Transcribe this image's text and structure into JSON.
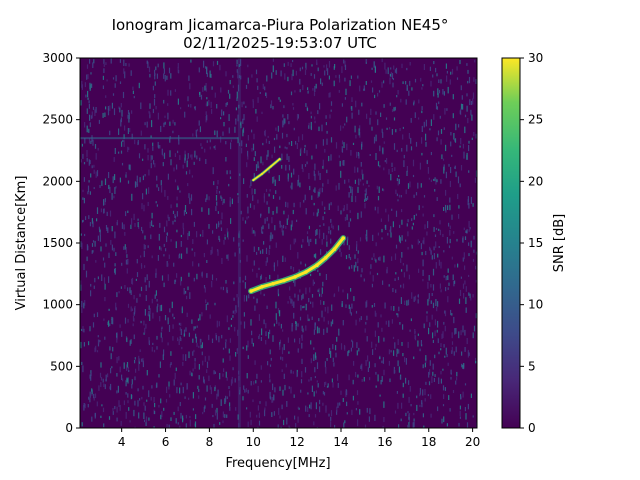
{
  "chart_data": {
    "type": "heatmap",
    "title_line1": "Ionogram Jicamarca-Piura Polarization NE45°",
    "title_line2": "02/11/2025-19:53:07 UTC",
    "xlabel": "Frequency[MHz]",
    "ylabel": "Virtual Distance[Km]",
    "xlim": [
      2.1,
      20.2
    ],
    "ylim": [
      0,
      3000
    ],
    "xticks": [
      4,
      6,
      8,
      10,
      12,
      14,
      16,
      18,
      20
    ],
    "yticks": [
      0,
      500,
      1000,
      1500,
      2000,
      2500,
      3000
    ],
    "colorbar": {
      "label": "SNR [dB]",
      "range": [
        0,
        30
      ],
      "ticks": [
        0,
        5,
        10,
        15,
        20,
        25,
        30
      ],
      "colormap": "viridis"
    },
    "traces": [
      {
        "name": "",
        "points": [
          [
            9.9,
            1110
          ],
          [
            10.4,
            1145
          ],
          [
            10.9,
            1170
          ],
          [
            11.4,
            1195
          ],
          [
            11.9,
            1225
          ],
          [
            12.4,
            1265
          ],
          [
            12.9,
            1320
          ],
          [
            13.3,
            1380
          ],
          [
            13.7,
            1450
          ],
          [
            14.1,
            1540
          ]
        ]
      },
      {
        "name": "",
        "points": [
          [
            10.0,
            2010
          ],
          [
            10.4,
            2060
          ],
          [
            10.8,
            2120
          ],
          [
            11.2,
            2180
          ]
        ]
      }
    ],
    "background_noise_snr": 1
  },
  "colors": {
    "viridis_low": "#440154",
    "viridis_mid": "#21918c",
    "viridis_high": "#fde725"
  }
}
